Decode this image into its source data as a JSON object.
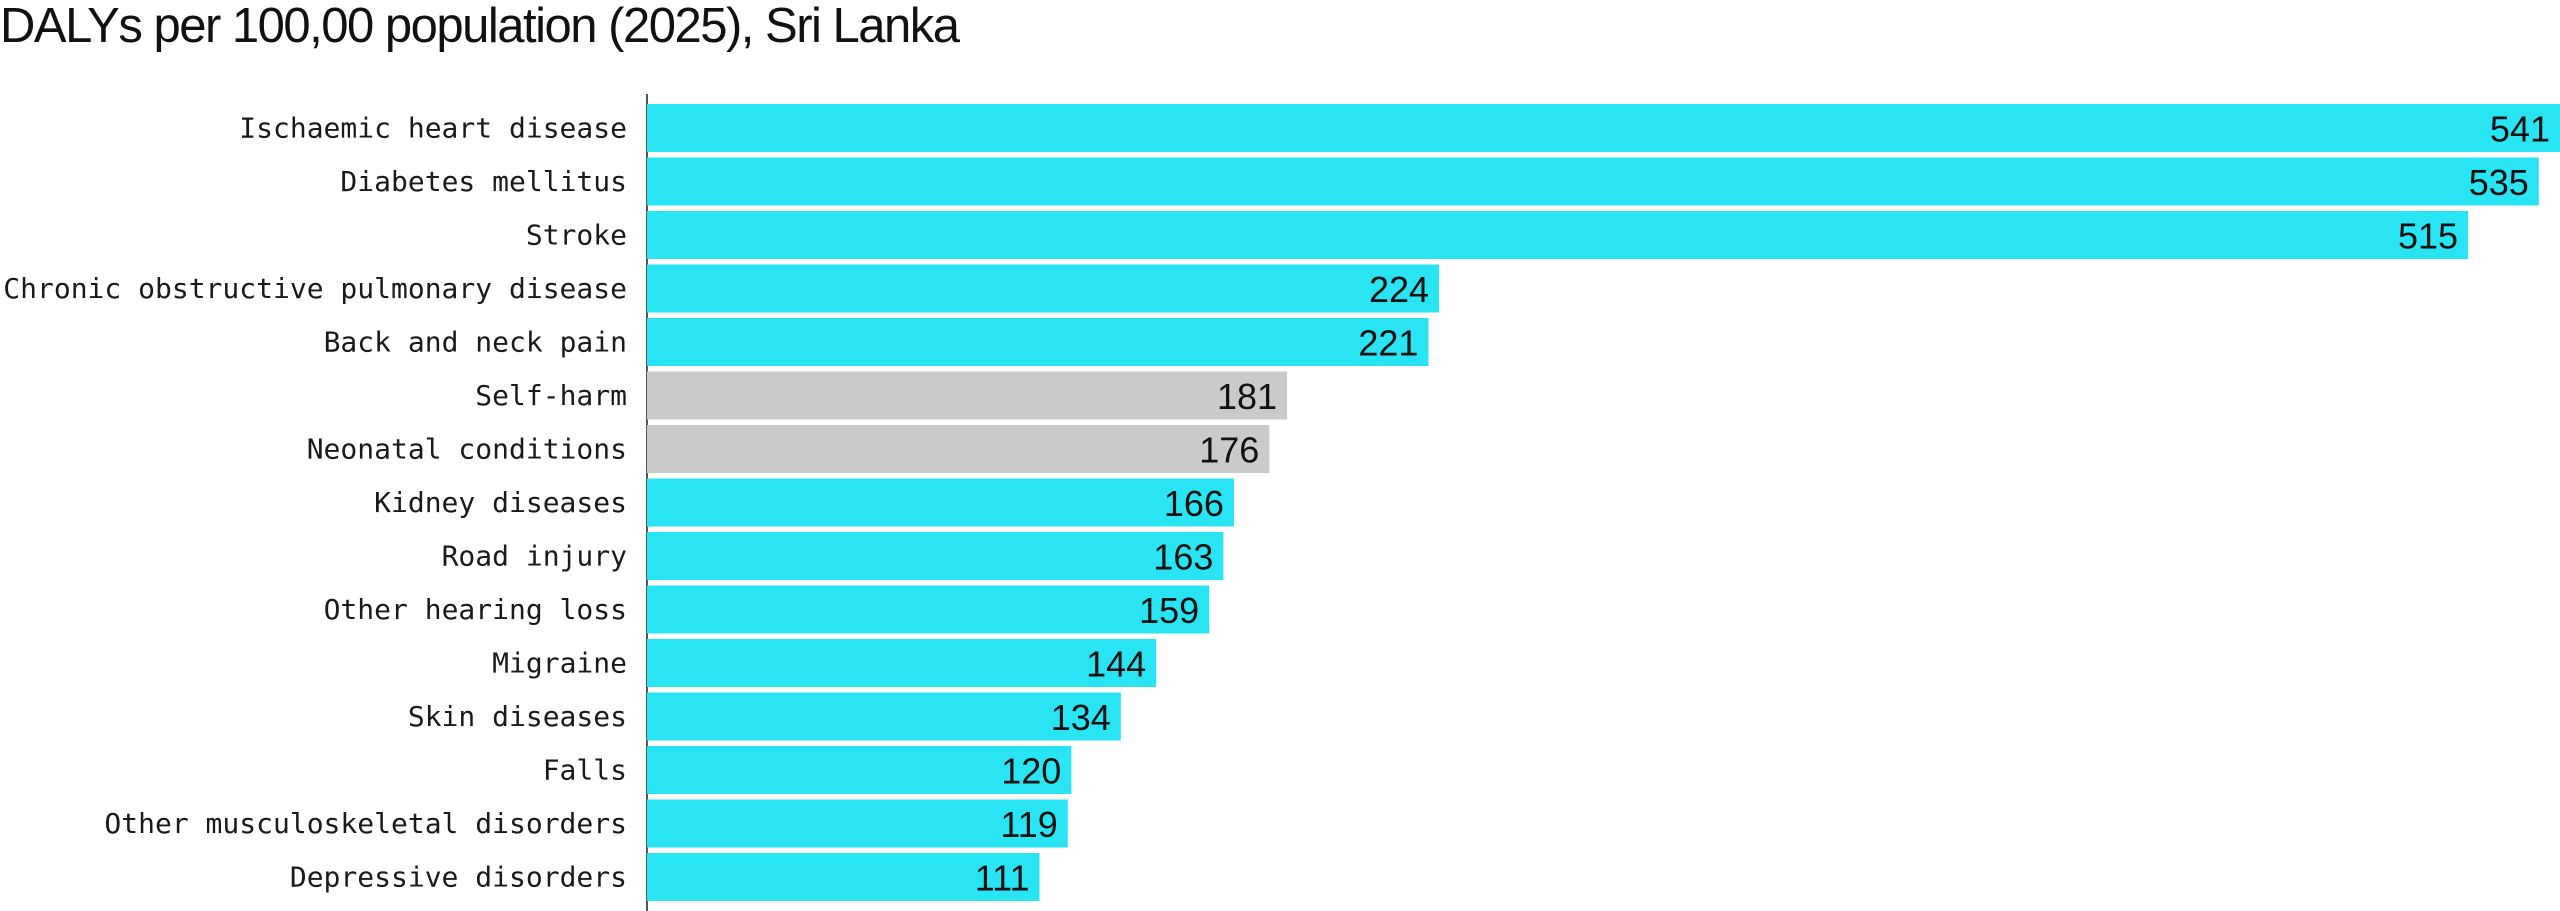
{
  "chart_data": {
    "type": "bar",
    "orientation": "horizontal",
    "title": "DALYs per 100,00 population (2025), Sri Lanka",
    "categories": [
      "Ischaemic heart disease",
      "Diabetes mellitus",
      "Stroke",
      "Chronic obstructive pulmonary disease",
      "Back and neck pain",
      "Self-harm",
      "Neonatal conditions",
      "Kidney diseases",
      "Road injury",
      "Other hearing loss",
      "Migraine",
      "Skin diseases",
      "Falls",
      "Other musculoskeletal disorders",
      "Depressive disorders"
    ],
    "values": [
      541,
      535,
      515,
      224,
      221,
      181,
      176,
      166,
      163,
      159,
      144,
      134,
      120,
      119,
      111
    ],
    "bar_colors": [
      "#29e4f2",
      "#29e4f2",
      "#29e4f2",
      "#29e4f2",
      "#29e4f2",
      "#cacaca",
      "#cacaca",
      "#29e4f2",
      "#29e4f2",
      "#29e4f2",
      "#29e4f2",
      "#29e4f2",
      "#29e4f2",
      "#29e4f2",
      "#29e4f2"
    ],
    "xlim": [
      0,
      541
    ],
    "grid": false,
    "legend": "none"
  }
}
